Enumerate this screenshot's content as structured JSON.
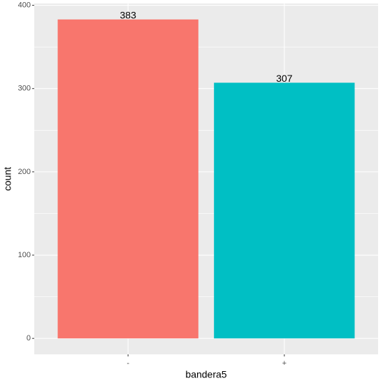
{
  "chart_data": {
    "type": "bar",
    "x_label": "bandera5",
    "y_label": "count",
    "categories": [
      "-",
      "+"
    ],
    "values": [
      383,
      307
    ],
    "colors": [
      "#F8766D",
      "#00BFC4"
    ],
    "ylim": [
      -19.15,
      402.15
    ],
    "yticks": [
      0,
      100,
      200,
      300,
      400
    ],
    "grid": true
  }
}
